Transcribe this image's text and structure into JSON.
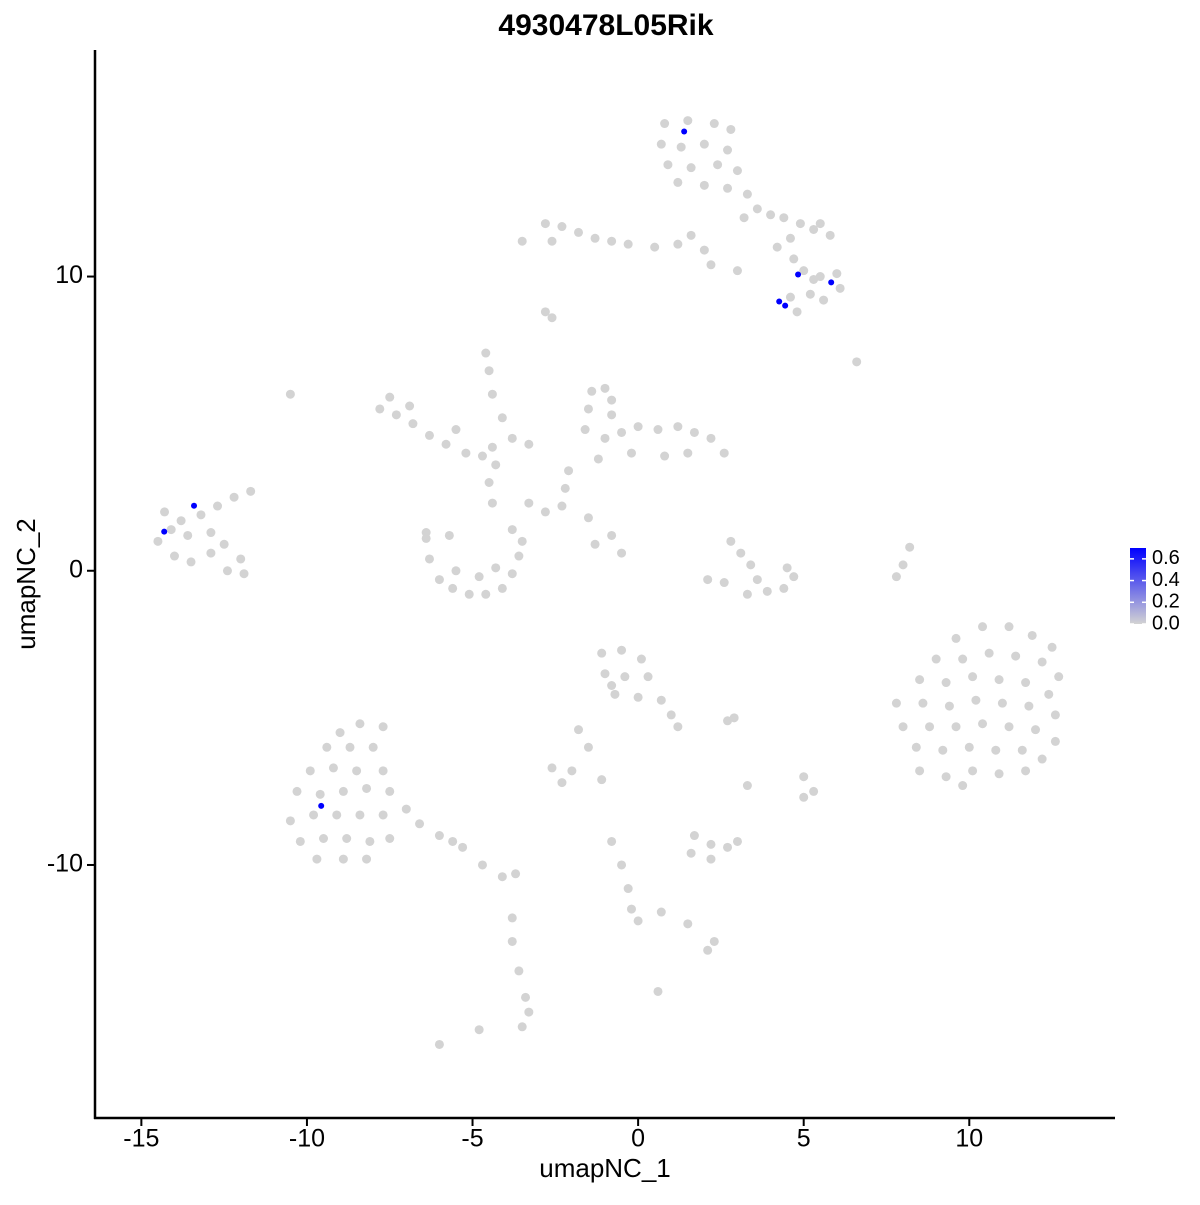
{
  "chart_data": {
    "type": "scatter",
    "title": "4930478L05Rik",
    "xlabel": "umapNC_1",
    "ylabel": "umapNC_2",
    "xlim": [
      -16.4,
      14.4
    ],
    "ylim": [
      -18.6,
      17.7
    ],
    "xticks": [
      -15,
      -10,
      -5,
      0,
      5,
      10
    ],
    "yticks": [
      -10,
      0,
      10
    ],
    "colorscale": {
      "low": "#d3d3d3",
      "high": "#0000ff",
      "lim": [
        0,
        0.7
      ],
      "ticks": [
        {
          "value": 0,
          "label": "0.0"
        },
        0.2,
        0.4,
        0.6
      ]
    },
    "series": [
      {
        "color": "#d3d3d3",
        "x": [
          0.8,
          1.5,
          2.3,
          2.8,
          0.7,
          1.3,
          2,
          2.7,
          0.9,
          1.6,
          2.4,
          3,
          1.2,
          2,
          2.7,
          3.3,
          3.6,
          4,
          4.4,
          4.9,
          5.3,
          4.6,
          5.5,
          5.8,
          3.2,
          4.2,
          4.7,
          5,
          5.5,
          6,
          6.1,
          5.2,
          4.6,
          4.8,
          5.6,
          5.3,
          6.6,
          -3.5,
          -2.8,
          -2.3,
          -2.6,
          -1.8,
          -1.3,
          -0.8,
          -0.3,
          0.5,
          1.2,
          1.6,
          2.2,
          3,
          2,
          -2.8,
          -2.6,
          -7.5,
          -7.3,
          -6.8,
          -6.3,
          -5.8,
          -5.2,
          -4.7,
          -4.3,
          -7.8,
          -6.9,
          -5.5,
          -4.4,
          -4.5,
          -4.4,
          -4.1,
          -3.8,
          -3.3,
          -4.6,
          -10.5,
          -4.5,
          -4.4,
          -3.3,
          -2.8,
          -6.4,
          -6.3,
          -6,
          -5.6,
          -5.1,
          -4.6,
          -4.1,
          -3.8,
          -3.6,
          -3.5,
          -3.8,
          -5.5,
          -4.8,
          -4.3,
          -6.4,
          -5.7,
          -1.4,
          -1,
          -1.5,
          -0.8,
          -1.6,
          -1,
          -0.5,
          0,
          0.6,
          1.2,
          1.7,
          2.2,
          2.6,
          1.5,
          0.8,
          -0.2,
          -1.2,
          -2.1,
          -2.2,
          -2.3,
          -0.8,
          -1.5,
          -0.8,
          -1.3,
          -0.5,
          2.8,
          3.1,
          3.4,
          3.6,
          3.9,
          3.3,
          2.6,
          2.1,
          4.4,
          4.7,
          4.5,
          8.2,
          8,
          7.8,
          -14.3,
          -13.8,
          -13.2,
          -12.7,
          -12.2,
          -11.7,
          -14.5,
          -14,
          -13.5,
          -12.9,
          -12.5,
          -12,
          -12.4,
          -11.9,
          -13.6,
          -12.9,
          -14.1,
          9.6,
          10.4,
          11.2,
          11.9,
          12.5,
          9,
          9.8,
          10.6,
          11.4,
          12.2,
          12.7,
          8.5,
          9.3,
          10.1,
          10.9,
          11.7,
          12.4,
          7.8,
          8.6,
          9.4,
          10.2,
          11,
          11.8,
          12.6,
          8,
          8.8,
          9.6,
          10.4,
          11.2,
          12,
          12.6,
          8.4,
          9.2,
          10,
          10.8,
          11.6,
          12.2,
          8.5,
          9.3,
          10.1,
          10.9,
          11.7,
          9.8,
          -1.1,
          -0.5,
          0.1,
          -1,
          -0.4,
          0.3,
          -0.7,
          0,
          0.7,
          1,
          1.2,
          -0.8,
          2.9,
          2.7,
          -1.8,
          -1.5,
          -2.6,
          -2,
          -2.3,
          -1.1,
          3.3,
          5,
          5.3,
          5,
          1.7,
          2.2,
          2.7,
          1.6,
          2.2,
          3,
          -0.8,
          -0.5,
          -0.3,
          -0.2,
          0,
          0.7,
          1.5,
          2.3,
          2.1,
          -3.8,
          -3.8,
          -3.6,
          -3.4,
          -3.3,
          -3.5,
          -4.8,
          0.6,
          -6,
          -9,
          -8.4,
          -7.7,
          -9.4,
          -8.7,
          -8,
          -9.9,
          -9.2,
          -8.5,
          -7.7,
          -10.3,
          -9.6,
          -8.9,
          -8.2,
          -7.5,
          -10.5,
          -9.8,
          -9.1,
          -8.4,
          -7.7,
          -7,
          -10.2,
          -9.5,
          -8.8,
          -8.1,
          -7.5,
          -9.7,
          -8.9,
          -8.2,
          -6.6,
          -6,
          -5.3,
          -4.7,
          -4.1,
          -3.7,
          -5.6
        ],
        "y": [
          15.2,
          15.3,
          15.2,
          15,
          14.5,
          14.4,
          14.5,
          14.3,
          13.8,
          13.7,
          13.8,
          13.6,
          13.2,
          13.1,
          13,
          12.8,
          12.3,
          12.1,
          12,
          11.8,
          11.6,
          11.3,
          11.8,
          11.4,
          12,
          11,
          10.6,
          10.2,
          10,
          10.1,
          9.6,
          9.4,
          9.3,
          8.8,
          9.2,
          9.9,
          7.1,
          11.2,
          11.8,
          11.7,
          11.2,
          11.5,
          11.3,
          11.2,
          11.1,
          11,
          11.1,
          11.4,
          10.4,
          10.2,
          10.9,
          8.8,
          8.6,
          5.9,
          5.3,
          5,
          4.6,
          4.3,
          4,
          3.9,
          3.6,
          5.5,
          5.6,
          4.8,
          4.2,
          6.8,
          6,
          5.2,
          4.5,
          4.3,
          7.4,
          6,
          3,
          2.3,
          2.3,
          2,
          1.1,
          0.4,
          -0.3,
          -0.6,
          -0.8,
          -0.8,
          -0.6,
          -0.1,
          0.5,
          1,
          1.4,
          0,
          -0.2,
          0.1,
          1.3,
          1.2,
          6.1,
          6.2,
          5.5,
          5.3,
          4.8,
          4.5,
          4.7,
          4.9,
          4.8,
          4.9,
          4.7,
          4.5,
          4,
          4,
          3.9,
          4,
          3.8,
          3.4,
          2.8,
          2.2,
          5.8,
          1.8,
          1.2,
          0.9,
          0.6,
          1,
          0.6,
          0.2,
          -0.3,
          -0.7,
          -0.8,
          -0.4,
          -0.3,
          -0.6,
          -0.2,
          0.1,
          0.8,
          0.2,
          -0.2,
          2,
          1.7,
          1.9,
          2.2,
          2.5,
          2.7,
          1,
          0.5,
          0.3,
          0.6,
          0.9,
          0.4,
          0,
          -0.1,
          1.2,
          1.3,
          1.4,
          -2.3,
          -1.9,
          -1.9,
          -2.2,
          -2.6,
          -3,
          -3,
          -2.8,
          -2.9,
          -3.1,
          -3.6,
          -3.7,
          -3.8,
          -3.6,
          -3.7,
          -3.8,
          -4.2,
          -4.5,
          -4.5,
          -4.6,
          -4.4,
          -4.5,
          -4.6,
          -4.9,
          -5.3,
          -5.3,
          -5.3,
          -5.2,
          -5.3,
          -5.4,
          -5.8,
          -6,
          -6.1,
          -6,
          -6.1,
          -6.1,
          -6.4,
          -6.8,
          -7,
          -6.8,
          -6.9,
          -6.8,
          -7.3,
          -2.8,
          -2.7,
          -3,
          -3.5,
          -3.6,
          -3.6,
          -4.2,
          -4.3,
          -4.4,
          -4.9,
          -5.3,
          -3.9,
          -5,
          -5.1,
          -5.4,
          -6,
          -6.7,
          -6.8,
          -7.2,
          -7.1,
          -7.3,
          -7,
          -7.5,
          -7.7,
          -9,
          -9.3,
          -9.4,
          -9.6,
          -9.8,
          -9.2,
          -9.2,
          -10,
          -10.8,
          -11.5,
          -11.9,
          -11.6,
          -12,
          -12.6,
          -12.9,
          -11.8,
          -12.6,
          -13.6,
          -14.5,
          -15,
          -15.5,
          -15.6,
          -14.3,
          -16.1,
          -5.5,
          -5.2,
          -5.3,
          -6,
          -6,
          -6,
          -6.8,
          -6.7,
          -6.8,
          -6.8,
          -7.5,
          -7.6,
          -7.5,
          -7.4,
          -7.5,
          -8.5,
          -8.3,
          -8.3,
          -8.3,
          -8.3,
          -8.1,
          -9.2,
          -9.1,
          -9.1,
          -9.2,
          -9.1,
          -9.8,
          -9.8,
          -9.8,
          -8.6,
          -9,
          -9.4,
          -10,
          -10.4,
          -10.3,
          -9.2
        ]
      },
      {
        "x": [
          1.39,
          4.83,
          5.83,
          4.26,
          4.44,
          -13.41,
          -14.31,
          -9.57
        ],
        "y": [
          14.93,
          10.07,
          9.8,
          9.15,
          9.01,
          2.21,
          1.33,
          -7.99
        ],
        "values": [
          0.7,
          0.7,
          0.7,
          0.7,
          0.7,
          0.7,
          0.7,
          0.7
        ]
      }
    ]
  }
}
